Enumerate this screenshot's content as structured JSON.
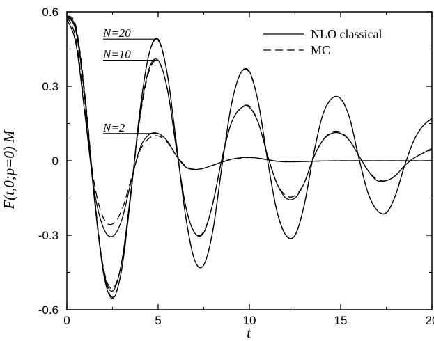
{
  "chart_data": {
    "type": "line",
    "title": "",
    "xlabel": "t",
    "ylabel": "F(t,0;p=0) M",
    "xlim": [
      0,
      20
    ],
    "ylim": [
      -0.6,
      0.6
    ],
    "x_ticks": [
      0,
      5,
      10,
      15,
      20
    ],
    "y_ticks": [
      -0.6,
      -0.3,
      0,
      0.3,
      0.6
    ],
    "y_tick_labels": [
      "-0.6",
      "-0.3",
      "0",
      "0.3",
      "0.6"
    ],
    "grid": false,
    "legend": {
      "position": "top-right",
      "entries": [
        {
          "label": "NLO classical",
          "style": "solid"
        },
        {
          "label": "MC",
          "style": "dashed"
        }
      ]
    },
    "annotations": [
      {
        "text": "N=20",
        "x": 5.0,
        "y": 0.49
      },
      {
        "text": "N=10",
        "x": 5.0,
        "y": 0.405
      },
      {
        "text": "N=2",
        "x": 5.0,
        "y": 0.11
      }
    ],
    "series": [
      {
        "style": "solid",
        "group": "N=20",
        "x": [
          0,
          0.5,
          1.0,
          1.5,
          2.0,
          2.5,
          3.0,
          3.5,
          4.0,
          4.5,
          5.0,
          5.5,
          6.0,
          6.5,
          7.0,
          7.5,
          8.0,
          8.5,
          9.0,
          9.5,
          10.0,
          10.5,
          11.0,
          11.5,
          12.0,
          12.5,
          13.0,
          13.5,
          14.0,
          14.5,
          15.0,
          15.5,
          16.0,
          16.5,
          17.0,
          17.5,
          18.0,
          18.5,
          19.0,
          19.5,
          20.0
        ],
        "y": [
          0.58,
          0.53,
          0.25,
          -0.14,
          -0.45,
          -0.555,
          -0.44,
          -0.14,
          0.2,
          0.43,
          0.49,
          0.35,
          0.07,
          -0.22,
          -0.4,
          -0.42,
          -0.28,
          -0.02,
          0.22,
          0.35,
          0.36,
          0.23,
          0.0,
          -0.2,
          -0.3,
          -0.3,
          -0.18,
          0.02,
          0.18,
          0.25,
          0.25,
          0.17,
          0.01,
          -0.13,
          -0.2,
          -0.21,
          -0.14,
          -0.02,
          0.08,
          0.14,
          0.17
        ]
      },
      {
        "style": "dashed",
        "group": "N=20",
        "x": [
          0,
          0.5,
          1.0,
          1.5,
          2.0,
          2.5,
          3.0,
          3.5,
          4.0,
          4.5,
          5.0,
          5.5,
          6.0,
          6.5,
          7.0,
          7.5,
          8.0,
          8.5,
          9.0,
          9.5,
          10.0,
          10.5,
          11.0,
          11.5,
          12.0,
          12.5,
          13.0,
          13.5,
          14.0,
          14.5,
          15.0,
          15.5,
          16.0,
          16.5,
          17.0,
          17.5,
          18.0,
          18.5,
          19.0,
          19.5,
          20.0
        ],
        "y": [
          0.585,
          0.54,
          0.26,
          -0.13,
          -0.44,
          -0.55,
          -0.44,
          -0.14,
          0.2,
          0.43,
          0.485,
          0.35,
          0.07,
          -0.22,
          -0.4,
          -0.42,
          -0.28,
          -0.02,
          0.22,
          0.35,
          0.355,
          0.23,
          0.0,
          -0.2,
          -0.3,
          -0.3,
          -0.18,
          0.02,
          0.18,
          0.25,
          0.25,
          0.17,
          0.01,
          -0.13,
          -0.2,
          -0.21,
          -0.14,
          -0.02,
          0.08,
          0.14,
          0.17
        ]
      },
      {
        "style": "solid",
        "group": "N=10",
        "x": [
          0,
          0.5,
          1.0,
          1.5,
          2.0,
          2.5,
          3.0,
          3.5,
          4.0,
          4.5,
          5.0,
          5.5,
          6.0,
          6.5,
          7.0,
          7.5,
          8.0,
          8.5,
          9.0,
          9.5,
          10.0,
          10.5,
          11.0,
          11.5,
          12.0,
          12.5,
          13.0,
          13.5,
          14.0,
          14.5,
          15.0,
          15.5,
          16.0,
          16.5,
          17.0,
          17.5,
          18.0,
          18.5,
          19.0,
          19.5,
          20.0
        ],
        "y": [
          0.58,
          0.52,
          0.24,
          -0.15,
          -0.44,
          -0.525,
          -0.41,
          -0.13,
          0.18,
          0.37,
          0.405,
          0.29,
          0.05,
          -0.18,
          -0.29,
          -0.29,
          -0.17,
          0.01,
          0.15,
          0.21,
          0.215,
          0.15,
          0.02,
          -0.09,
          -0.15,
          -0.15,
          -0.09,
          0.01,
          0.08,
          0.11,
          0.11,
          0.08,
          0.02,
          -0.04,
          -0.08,
          -0.08,
          -0.06,
          -0.02,
          0.01,
          0.03,
          0.05
        ]
      },
      {
        "style": "dashed",
        "group": "N=10",
        "x": [
          0,
          0.5,
          1.0,
          1.5,
          2.0,
          2.5,
          3.0,
          3.5,
          4.0,
          4.5,
          5.0,
          5.5,
          6.0,
          6.5,
          7.0,
          7.5,
          8.0,
          8.5,
          9.0,
          9.5,
          10.0,
          10.5,
          11.0,
          11.5,
          12.0,
          12.5,
          13.0,
          13.5,
          14.0,
          14.5,
          15.0,
          15.5,
          16.0,
          16.5,
          17.0,
          17.5,
          18.0,
          18.5,
          19.0,
          19.5,
          20.0
        ],
        "y": [
          0.585,
          0.53,
          0.25,
          -0.14,
          -0.43,
          -0.515,
          -0.41,
          -0.13,
          0.17,
          0.36,
          0.4,
          0.29,
          0.05,
          -0.18,
          -0.29,
          -0.285,
          -0.17,
          0.01,
          0.15,
          0.21,
          0.22,
          0.15,
          0.02,
          -0.09,
          -0.14,
          -0.14,
          -0.09,
          0.01,
          0.08,
          0.115,
          0.115,
          0.08,
          0.02,
          -0.04,
          -0.075,
          -0.08,
          -0.06,
          -0.02,
          0.01,
          0.03,
          0.045
        ]
      },
      {
        "style": "solid",
        "group": "N=2",
        "x": [
          0,
          0.5,
          1.0,
          1.5,
          2.0,
          2.5,
          3.0,
          3.5,
          4.0,
          4.5,
          5.0,
          5.5,
          6.0,
          6.5,
          7.0,
          7.5,
          8.0,
          8.5,
          9.0,
          9.5,
          10.0,
          10.5,
          11.0,
          11.5,
          12.0,
          12.5,
          13.0,
          14.0,
          15.0,
          16.0,
          17.0,
          18.0,
          19.0,
          20.0
        ],
        "y": [
          0.57,
          0.47,
          0.18,
          -0.12,
          -0.27,
          -0.305,
          -0.24,
          -0.09,
          0.05,
          0.105,
          0.11,
          0.08,
          0.02,
          -0.025,
          -0.035,
          -0.03,
          -0.018,
          -0.005,
          0.006,
          0.012,
          0.014,
          0.01,
          0.004,
          -0.002,
          -0.004,
          -0.004,
          -0.003,
          -0.001,
          0.0,
          0.0,
          0.0,
          0.0,
          0.0,
          0.0
        ]
      },
      {
        "style": "dashed",
        "group": "N=2",
        "x": [
          0,
          0.5,
          1.0,
          1.5,
          2.0,
          2.5,
          3.0,
          3.5,
          4.0,
          4.5,
          5.0,
          5.5,
          6.0,
          6.5,
          7.0,
          7.5,
          8.0,
          8.5,
          9.0,
          9.5,
          10.0,
          10.5,
          11.0,
          11.5,
          12.0,
          12.5,
          13.0,
          14.0,
          15.0,
          16.0,
          17.0,
          18.0,
          19.0,
          20.0
        ],
        "y": [
          0.58,
          0.49,
          0.2,
          -0.09,
          -0.23,
          -0.255,
          -0.2,
          -0.08,
          0.04,
          0.09,
          0.1,
          0.075,
          0.02,
          -0.02,
          -0.035,
          -0.03,
          -0.018,
          -0.006,
          0.005,
          0.01,
          0.013,
          0.01,
          0.004,
          -0.002,
          -0.004,
          -0.004,
          -0.003,
          -0.001,
          0.0,
          0.0,
          0.0,
          0.0,
          0.0,
          0.0
        ]
      }
    ]
  }
}
